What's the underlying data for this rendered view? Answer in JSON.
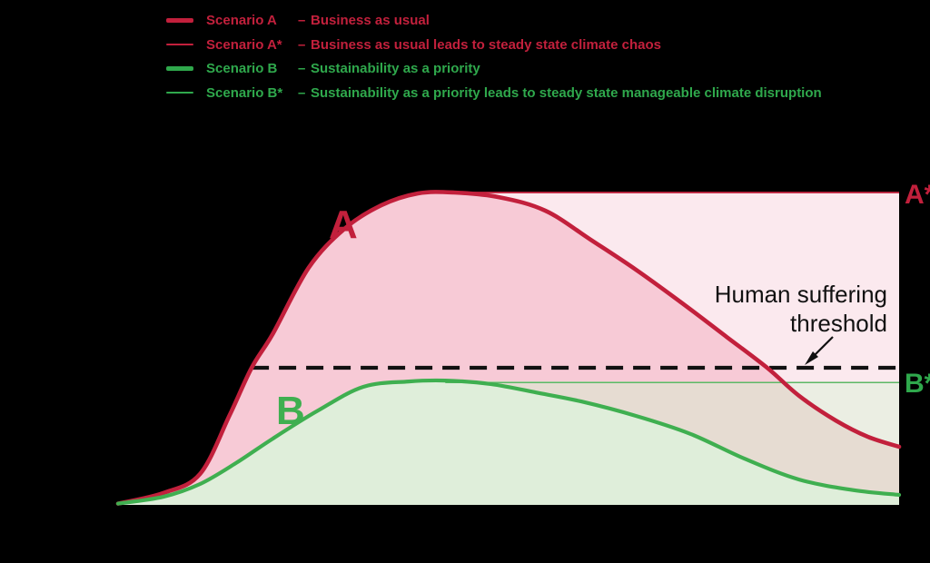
{
  "legend": {
    "items": [
      {
        "label": "Scenario A",
        "separator": "–",
        "description": "Business as usual",
        "color": "#C2203C",
        "line_weight": "thick"
      },
      {
        "label": "Scenario A*",
        "separator": "–",
        "description": "Business as usual leads to steady state climate chaos",
        "color": "#C2203C",
        "line_weight": "thin"
      },
      {
        "label": "Scenario B",
        "separator": "–",
        "description": "Sustainability as a priority",
        "color": "#2FA84C",
        "line_weight": "thick"
      },
      {
        "label": "Scenario B*",
        "separator": "–",
        "description": "Sustainability as a priority leads to steady state manageable climate disruption",
        "color": "#2FA84C",
        "line_weight": "thin"
      }
    ]
  },
  "annotations": {
    "curve_a_label": "A",
    "curve_b_label": "B",
    "a_star_label": "A*",
    "b_star_label": "B*",
    "threshold_label_line1": "Human suffering",
    "threshold_label_line2": "threshold"
  },
  "colors": {
    "background": "#000000",
    "scenario_red": "#C2203C",
    "scenario_green": "#2FA84C",
    "curve_a_stroke": "#C2203C",
    "curve_b_stroke": "#3FAF50",
    "b_star_stroke": "#5CB966",
    "threshold_line": "#111111",
    "fill_light_pink": "#FBE9EE",
    "fill_medium_pink": "#F7CAD6",
    "fill_brown_overlap": "#E6DCD2",
    "fill_light_green_grey": "#EBEEE3",
    "fill_light_green": "#DFEEDA"
  },
  "chart_data": {
    "type": "line",
    "title": "",
    "xlabel": "",
    "ylabel": "",
    "notes": "Conceptual diagram with no numeric axes; x is time (normalized 0-1), y is impact level normalized so Scenario A peak = 1.0",
    "x_range": [
      0,
      1
    ],
    "y_range": [
      0,
      1
    ],
    "grid": false,
    "legend_position": "top-left",
    "series": [
      {
        "name": "Scenario A",
        "points": [
          [
            0.0,
            0.004
          ],
          [
            0.058,
            0.038
          ],
          [
            0.105,
            0.099
          ],
          [
            0.143,
            0.288
          ],
          [
            0.171,
            0.439
          ],
          [
            0.198,
            0.547
          ],
          [
            0.244,
            0.759
          ],
          [
            0.29,
            0.884
          ],
          [
            0.337,
            0.959
          ],
          [
            0.384,
            0.997
          ],
          [
            0.43,
            1.0
          ],
          [
            0.488,
            0.985
          ],
          [
            0.547,
            0.942
          ],
          [
            0.605,
            0.849
          ],
          [
            0.663,
            0.753
          ],
          [
            0.721,
            0.648
          ],
          [
            0.779,
            0.538
          ],
          [
            0.831,
            0.439
          ],
          [
            0.872,
            0.349
          ],
          [
            0.919,
            0.27
          ],
          [
            0.96,
            0.218
          ],
          [
            1.0,
            0.186
          ]
        ]
      },
      {
        "name": "Scenario B",
        "points": [
          [
            0.0,
            0.004
          ],
          [
            0.058,
            0.026
          ],
          [
            0.105,
            0.067
          ],
          [
            0.151,
            0.134
          ],
          [
            0.198,
            0.212
          ],
          [
            0.256,
            0.302
          ],
          [
            0.314,
            0.378
          ],
          [
            0.372,
            0.395
          ],
          [
            0.419,
            0.398
          ],
          [
            0.477,
            0.387
          ],
          [
            0.535,
            0.36
          ],
          [
            0.593,
            0.331
          ],
          [
            0.663,
            0.285
          ],
          [
            0.733,
            0.227
          ],
          [
            0.802,
            0.148
          ],
          [
            0.872,
            0.081
          ],
          [
            0.942,
            0.047
          ],
          [
            1.0,
            0.032
          ]
        ]
      }
    ],
    "reference_lines": [
      {
        "label": "A*",
        "level": 1.0,
        "style": "thin solid red",
        "meaning": "steady state climate chaos"
      },
      {
        "label": "B*",
        "level": 0.392,
        "style": "thin solid green",
        "meaning": "steady state manageable climate disruption"
      },
      {
        "label": "Human suffering threshold",
        "level": 0.439,
        "style": "dashed black"
      }
    ]
  }
}
